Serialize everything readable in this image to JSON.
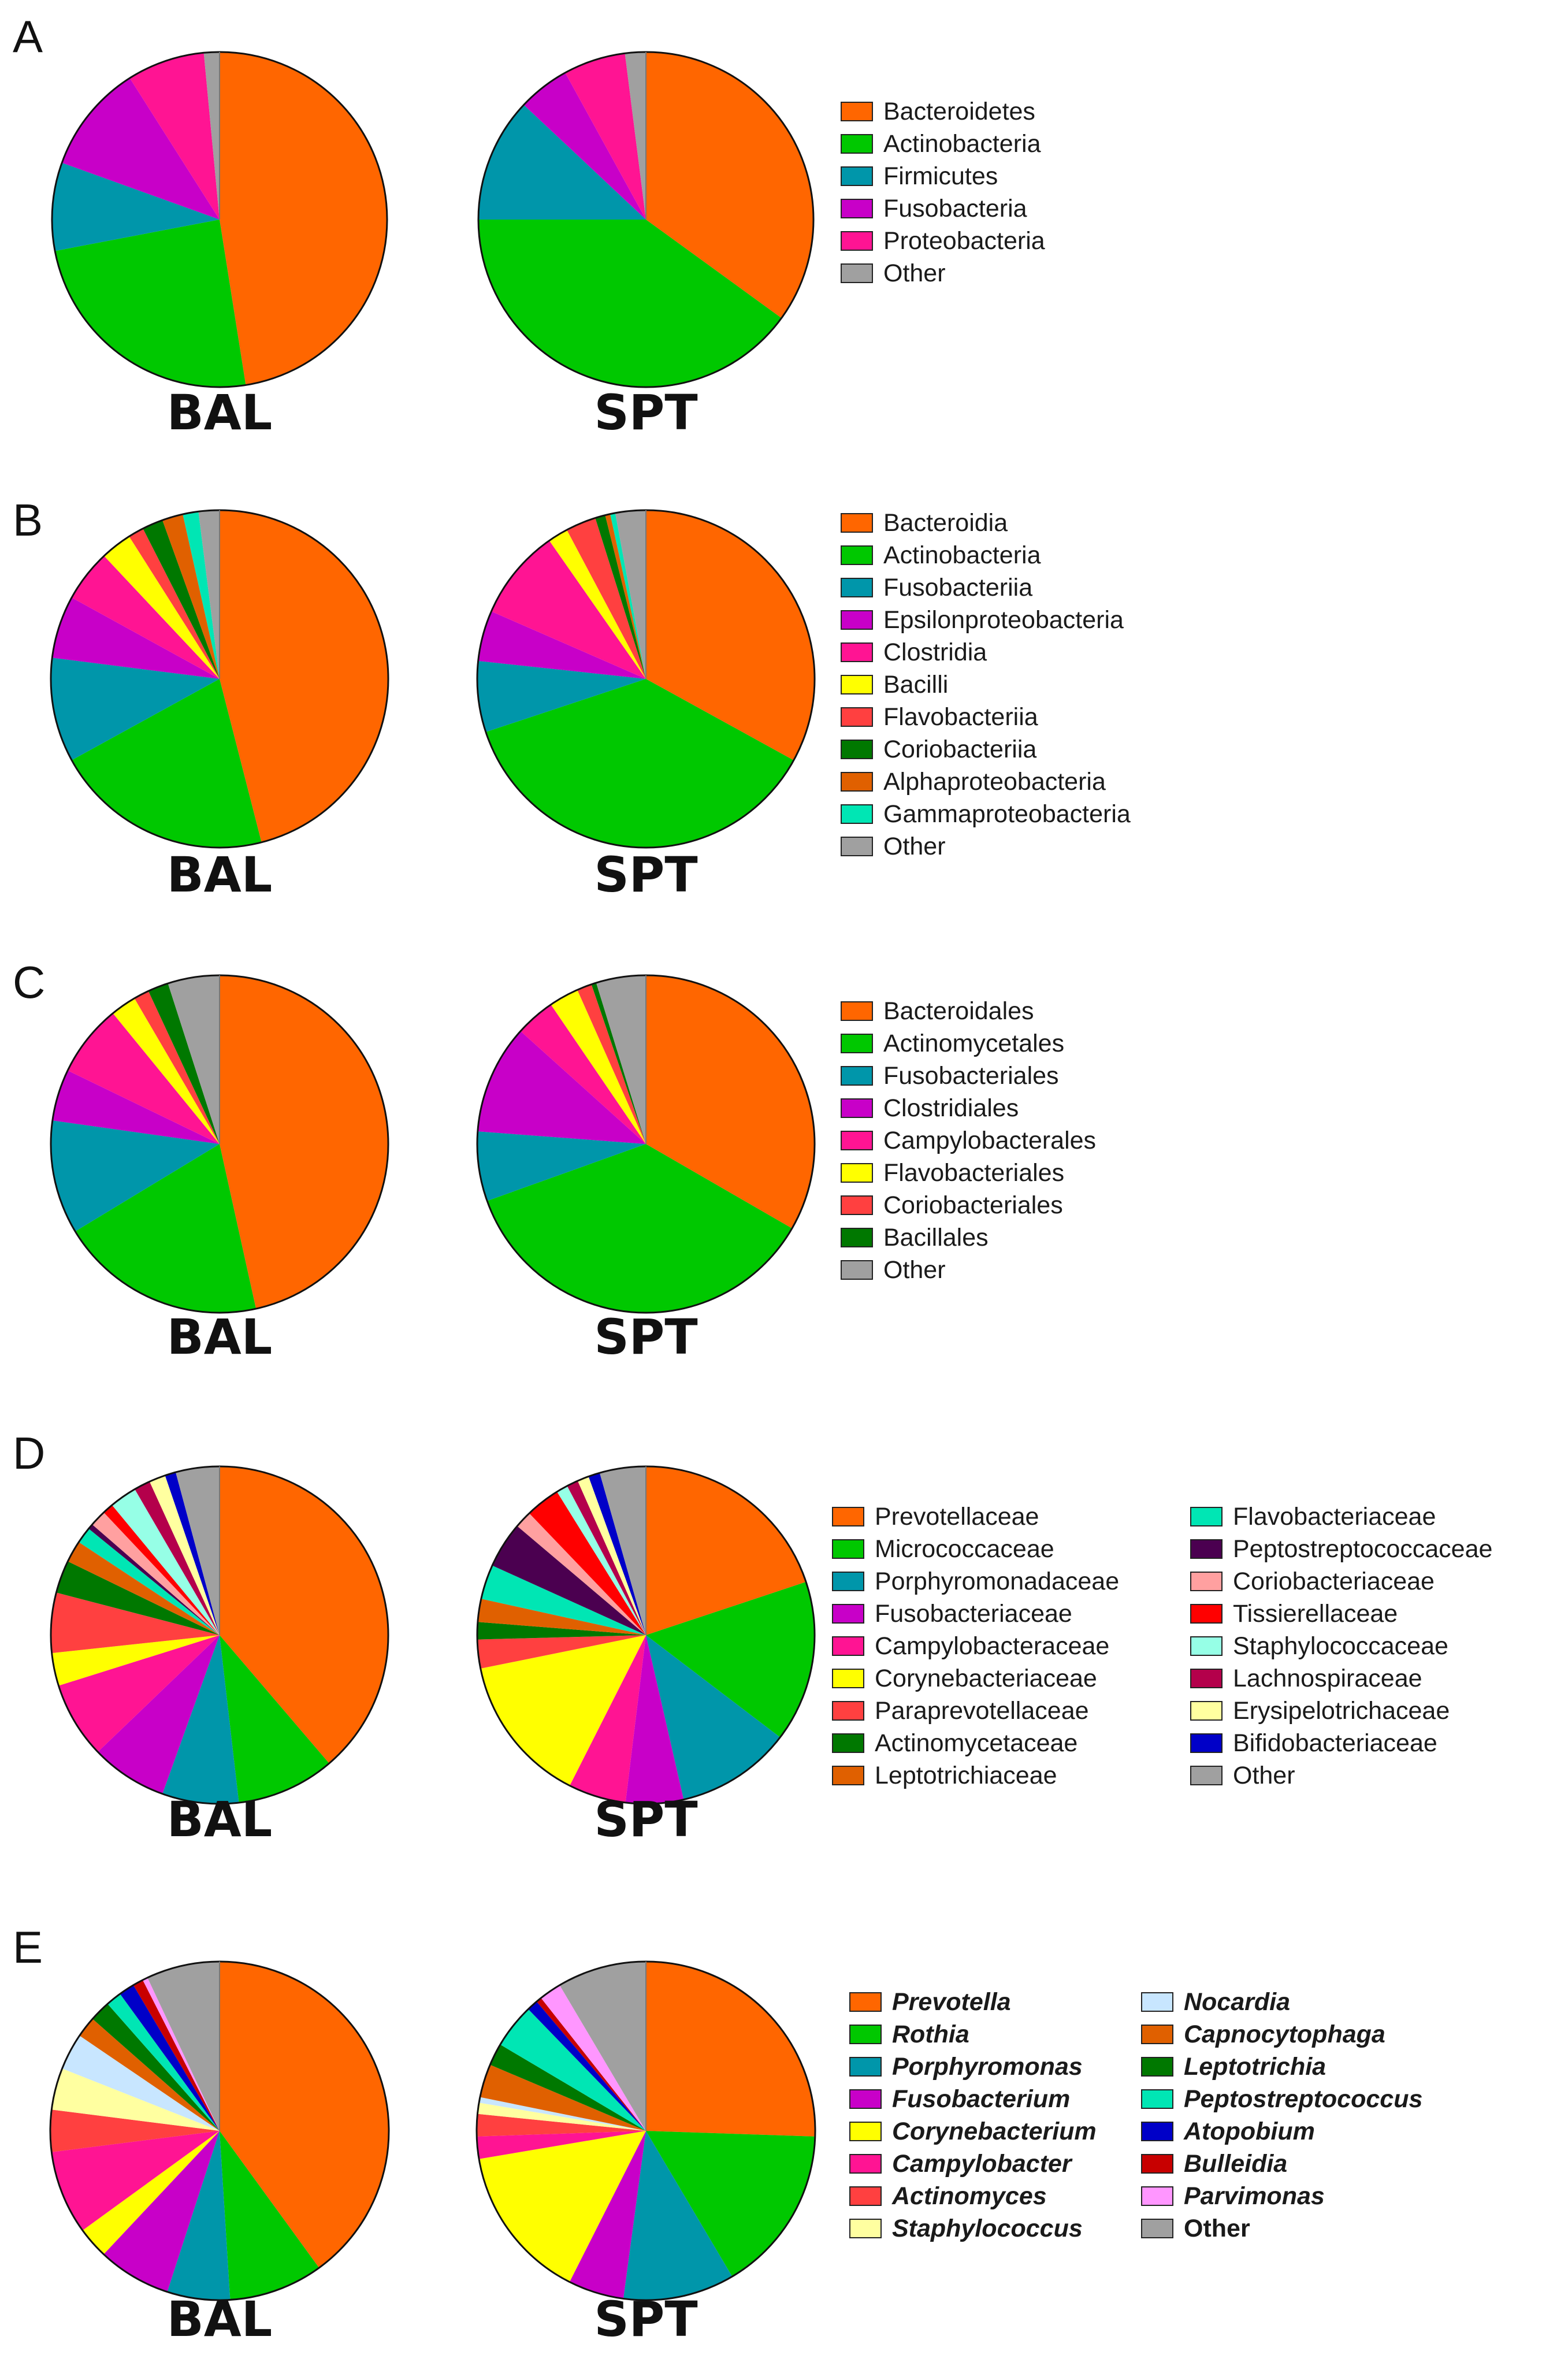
{
  "panels": [
    {
      "letter": "A",
      "categories": [
        "Bacteroidetes",
        "Actinobacteria",
        "Firmicutes",
        "Fusobacteria",
        "Proteobacteria",
        "Other"
      ],
      "colors": [
        "#FF6600",
        "#00C800",
        "#0096AA",
        "#C800C8",
        "#FF1493",
        "#A0A0A0"
      ],
      "legend_italic": false,
      "charts": [
        {
          "label": "BAL",
          "values": [
            47.5,
            24.5,
            8.5,
            10.5,
            7.5,
            1.5
          ]
        },
        {
          "label": "SPT",
          "values": [
            35,
            40,
            12,
            5,
            6,
            2
          ]
        }
      ]
    },
    {
      "letter": "B",
      "categories": [
        "Bacteroidia",
        "Actinobacteria",
        "Fusobacteriia",
        "Epsilonproteobacteria",
        "Clostridia",
        "Bacilli",
        "Flavobacteriia",
        "Coriobacteriia",
        "Alphaproteobacteria",
        "Gammaproteobacteria",
        "Other"
      ],
      "colors": [
        "#FF6600",
        "#00C800",
        "#0096AA",
        "#C800C8",
        "#FF1493",
        "#FFFF00",
        "#FF4040",
        "#007800",
        "#E06000",
        "#00E6B4",
        "#A0A0A0"
      ],
      "legend_italic": false,
      "charts": [
        {
          "label": "BAL",
          "values": [
            46,
            21,
            10,
            6,
            5,
            3,
            1.5,
            2,
            2,
            1.5,
            2
          ]
        },
        {
          "label": "SPT",
          "values": [
            34,
            38,
            7,
            5,
            9,
            2,
            3,
            1,
            0.5,
            0.5,
            3
          ]
        }
      ]
    },
    {
      "letter": "C",
      "categories": [
        "Bacteroidales",
        "Actinomycetales",
        "Fusobacteriales",
        "Clostridiales",
        "Campylobacterales",
        "Flavobacteriales",
        "Coriobacteriales",
        "Bacillales",
        "Other"
      ],
      "colors": [
        "#FF6600",
        "#00C800",
        "#0096AA",
        "#C800C8",
        "#FF1493",
        "#FFFF00",
        "#FF4040",
        "#007800",
        "#A0A0A0"
      ],
      "legend_italic": false,
      "charts": [
        {
          "label": "BAL",
          "values": [
            47,
            20,
            11,
            5,
            7,
            2.5,
            1.5,
            2,
            5
          ]
        },
        {
          "label": "SPT",
          "values": [
            35,
            38,
            7,
            11,
            4,
            3,
            1.5,
            0.5,
            5
          ]
        }
      ]
    },
    {
      "letter": "D",
      "categories": [
        "Prevotellaceae",
        "Micrococcaceae",
        "Porphyromonadaceae",
        "Fusobacteriaceae",
        "Campylobacteraceae",
        "Corynebacteriaceae",
        "Paraprevotellaceae",
        "Actinomycetaceae",
        "Leptotrichiaceae",
        "Flavobacteriaceae",
        "Peptostreptococcaceae",
        "Coriobacteriaceae",
        "Tissierellaceae",
        "Staphylococcaceae",
        "Lachnospiraceae",
        "Erysipelotrichaceae",
        "Bifidobacteriaceae",
        "Other"
      ],
      "colors": [
        "#FF6600",
        "#00C800",
        "#0096AA",
        "#C800C8",
        "#FF1493",
        "#FFFF00",
        "#FF4040",
        "#007800",
        "#E06000",
        "#00E6B4",
        "#4B0050",
        "#FFA0A0",
        "#FF0000",
        "#96FFE6",
        "#B4004B",
        "#FFFFA0",
        "#0000C8",
        "#A0A0A0"
      ],
      "legend_italic": false,
      "charts": [
        {
          "label": "BAL",
          "values": [
            37,
            9,
            7,
            7,
            7,
            3,
            5.5,
            3,
            2,
            1.5,
            0.5,
            1.5,
            1,
            2.5,
            1.5,
            1.5,
            1,
            4
          ]
        },
        {
          "label": "SPT",
          "values": [
            18,
            14,
            10,
            5,
            5,
            13,
            2.5,
            1.5,
            2,
            3,
            4,
            1.5,
            3,
            1,
            1,
            1,
            1,
            4
          ]
        }
      ]
    },
    {
      "letter": "E",
      "categories": [
        "Prevotella",
        "Rothia",
        "Porphyromonas",
        "Fusobacterium",
        "Corynebacterium",
        "Campylobacter",
        "Actinomyces",
        "Staphylococcus",
        "Nocardia",
        "Capnocytophaga",
        "Leptotrichia",
        "Peptostreptococcus",
        "Atopobium",
        "Bulleidia",
        "Parvimonas",
        "Other"
      ],
      "colors": [
        "#FF6600",
        "#00C800",
        "#0096AA",
        "#C800C8",
        "#FFFF00",
        "#FF1493",
        "#FF4040",
        "#FFFFA0",
        "#C8E6FF",
        "#E06000",
        "#007800",
        "#00E6B4",
        "#0000C8",
        "#C80000",
        "#FF96FF",
        "#A0A0A0"
      ],
      "legend_italic": true,
      "charts": [
        {
          "label": "BAL",
          "values": [
            40,
            9,
            6,
            7,
            3,
            8,
            4,
            4,
            3.5,
            2,
            2,
            1.5,
            1.5,
            1,
            0.5,
            7
          ]
        },
        {
          "label": "SPT",
          "values": [
            24,
            15,
            10,
            5,
            14,
            2,
            2,
            1,
            0.5,
            3,
            2,
            4,
            1,
            0.5,
            2,
            8
          ]
        }
      ]
    }
  ]
}
